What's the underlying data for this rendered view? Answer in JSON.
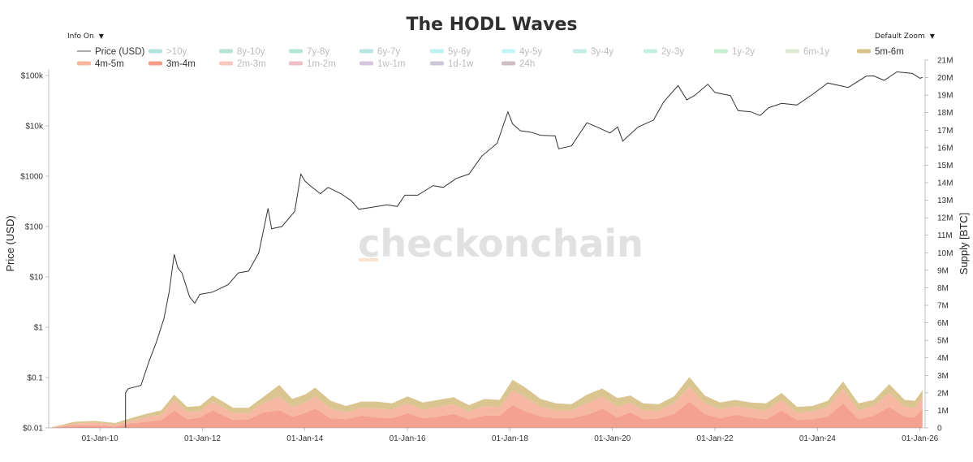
{
  "header": {
    "title": "The HODL Waves",
    "info_toggle": "Info On",
    "zoom_select": "Default Zoom",
    "watermark": "checkonchain"
  },
  "chart_data": {
    "type": "area",
    "title": "The HODL Waves",
    "xlabel": "",
    "ylabel_left": "Price (USD)",
    "ylabel_right": "Supply [BTC]",
    "x_range": [
      2009.0,
      2026.1
    ],
    "y_left_scale": "log",
    "y_left_range": [
      0.01,
      100000
    ],
    "y_right_range": [
      0,
      21000000
    ],
    "x_ticks": [
      {
        "year": 2010,
        "label": "01-Jan-10"
      },
      {
        "year": 2012,
        "label": "01-Jan-12"
      },
      {
        "year": 2014,
        "label": "01-Jan-14"
      },
      {
        "year": 2016,
        "label": "01-Jan-16"
      },
      {
        "year": 2018,
        "label": "01-Jan-18"
      },
      {
        "year": 2020,
        "label": "01-Jan-20"
      },
      {
        "year": 2022,
        "label": "01-Jan-22"
      },
      {
        "year": 2024,
        "label": "01-Jan-24"
      },
      {
        "year": 2026,
        "label": "01-Jan-26"
      }
    ],
    "y_left_ticks": [
      {
        "value": 0.01,
        "label": "$0.01"
      },
      {
        "value": 0.1,
        "label": "$0.1"
      },
      {
        "value": 1,
        "label": "$1"
      },
      {
        "value": 10,
        "label": "$10"
      },
      {
        "value": 100,
        "label": "$100"
      },
      {
        "value": 1000,
        "label": "$1000"
      },
      {
        "value": 10000,
        "label": "$10k"
      },
      {
        "value": 100000,
        "label": "$100k"
      }
    ],
    "y_right_ticks": [
      {
        "value": 0,
        "label": "0"
      },
      {
        "value": 1000000,
        "label": "1M"
      },
      {
        "value": 2000000,
        "label": "2M"
      },
      {
        "value": 3000000,
        "label": "3M"
      },
      {
        "value": 4000000,
        "label": "4M"
      },
      {
        "value": 5000000,
        "label": "5M"
      },
      {
        "value": 6000000,
        "label": "6M"
      },
      {
        "value": 7000000,
        "label": "7M"
      },
      {
        "value": 8000000,
        "label": "8M"
      },
      {
        "value": 9000000,
        "label": "9M"
      },
      {
        "value": 10000000,
        "label": "10M"
      },
      {
        "value": 11000000,
        "label": "11M"
      },
      {
        "value": 12000000,
        "label": "12M"
      },
      {
        "value": 13000000,
        "label": "13M"
      },
      {
        "value": 14000000,
        "label": "14M"
      },
      {
        "value": 15000000,
        "label": "15M"
      },
      {
        "value": 16000000,
        "label": "16M"
      },
      {
        "value": 17000000,
        "label": "17M"
      },
      {
        "value": 18000000,
        "label": "18M"
      },
      {
        "value": 19000000,
        "label": "19M"
      },
      {
        "value": 20000000,
        "label": "20M"
      },
      {
        "value": 21000000,
        "label": "21M"
      }
    ],
    "legend": [
      {
        "name": "Price (USD)",
        "color": "#555555",
        "type": "line",
        "visible": true
      },
      {
        "name": ">10y",
        "color": "#b2e3de",
        "type": "area",
        "visible": false
      },
      {
        "name": "8y-10y",
        "color": "#b5e2d2",
        "type": "area",
        "visible": false
      },
      {
        "name": "7y-8y",
        "color": "#b3e6d6",
        "type": "area",
        "visible": false
      },
      {
        "name": "6y-7y",
        "color": "#b6e4e1",
        "type": "area",
        "visible": false
      },
      {
        "name": "5y-6y",
        "color": "#bdf2ef",
        "type": "area",
        "visible": false
      },
      {
        "name": "4y-5y",
        "color": "#c4f5f6",
        "type": "area",
        "visible": false
      },
      {
        "name": "3y-4y",
        "color": "#c3ede6",
        "type": "area",
        "visible": false
      },
      {
        "name": "2y-3y",
        "color": "#c4f0dd",
        "type": "area",
        "visible": false
      },
      {
        "name": "1y-2y",
        "color": "#c8efcf",
        "type": "area",
        "visible": false
      },
      {
        "name": "6m-1y",
        "color": "#dcead0",
        "type": "area",
        "visible": false
      },
      {
        "name": "5m-6m",
        "color": "#d8c28a",
        "type": "area",
        "visible": true
      },
      {
        "name": "4m-5m",
        "color": "#f6b49e",
        "type": "area",
        "visible": true
      },
      {
        "name": "3m-4m",
        "color": "#f49c89",
        "type": "area",
        "visible": true
      },
      {
        "name": "2m-3m",
        "color": "#f8c7bd",
        "type": "area",
        "visible": false
      },
      {
        "name": "1m-2m",
        "color": "#eebfc6",
        "type": "area",
        "visible": false
      },
      {
        "name": "1w-1m",
        "color": "#d4c6dc",
        "type": "area",
        "visible": false
      },
      {
        "name": "1d-1w",
        "color": "#cdc6d6",
        "type": "area",
        "visible": false
      },
      {
        "name": "24h",
        "color": "#cdbdc5",
        "type": "area",
        "visible": false
      }
    ],
    "price_series": [
      {
        "x": 2010.5,
        "y": 0.05
      },
      {
        "x": 2010.55,
        "y": 0.06
      },
      {
        "x": 2010.8,
        "y": 0.07
      },
      {
        "x": 2010.95,
        "y": 0.2
      },
      {
        "x": 2011.1,
        "y": 0.5
      },
      {
        "x": 2011.25,
        "y": 1.5
      },
      {
        "x": 2011.35,
        "y": 5
      },
      {
        "x": 2011.45,
        "y": 28
      },
      {
        "x": 2011.52,
        "y": 15
      },
      {
        "x": 2011.6,
        "y": 12
      },
      {
        "x": 2011.75,
        "y": 4
      },
      {
        "x": 2011.85,
        "y": 3
      },
      {
        "x": 2011.95,
        "y": 4.5
      },
      {
        "x": 2012.2,
        "y": 5
      },
      {
        "x": 2012.5,
        "y": 7
      },
      {
        "x": 2012.7,
        "y": 12
      },
      {
        "x": 2012.9,
        "y": 13
      },
      {
        "x": 2013.1,
        "y": 30
      },
      {
        "x": 2013.28,
        "y": 230
      },
      {
        "x": 2013.35,
        "y": 90
      },
      {
        "x": 2013.55,
        "y": 100
      },
      {
        "x": 2013.8,
        "y": 200
      },
      {
        "x": 2013.92,
        "y": 1100
      },
      {
        "x": 2014.0,
        "y": 800
      },
      {
        "x": 2014.1,
        "y": 650
      },
      {
        "x": 2014.3,
        "y": 450
      },
      {
        "x": 2014.45,
        "y": 600
      },
      {
        "x": 2014.7,
        "y": 450
      },
      {
        "x": 2014.9,
        "y": 330
      },
      {
        "x": 2015.05,
        "y": 220
      },
      {
        "x": 2015.3,
        "y": 240
      },
      {
        "x": 2015.6,
        "y": 270
      },
      {
        "x": 2015.8,
        "y": 250
      },
      {
        "x": 2015.95,
        "y": 420
      },
      {
        "x": 2016.2,
        "y": 420
      },
      {
        "x": 2016.5,
        "y": 650
      },
      {
        "x": 2016.7,
        "y": 600
      },
      {
        "x": 2016.95,
        "y": 900
      },
      {
        "x": 2017.2,
        "y": 1100
      },
      {
        "x": 2017.45,
        "y": 2500
      },
      {
        "x": 2017.75,
        "y": 4500
      },
      {
        "x": 2017.96,
        "y": 19000
      },
      {
        "x": 2018.05,
        "y": 11000
      },
      {
        "x": 2018.2,
        "y": 8000
      },
      {
        "x": 2018.4,
        "y": 7500
      },
      {
        "x": 2018.6,
        "y": 6500
      },
      {
        "x": 2018.88,
        "y": 6300
      },
      {
        "x": 2018.95,
        "y": 3500
      },
      {
        "x": 2019.2,
        "y": 4000
      },
      {
        "x": 2019.5,
        "y": 11500
      },
      {
        "x": 2019.7,
        "y": 9500
      },
      {
        "x": 2019.95,
        "y": 7200
      },
      {
        "x": 2020.1,
        "y": 9500
      },
      {
        "x": 2020.2,
        "y": 5000
      },
      {
        "x": 2020.5,
        "y": 9500
      },
      {
        "x": 2020.8,
        "y": 13000
      },
      {
        "x": 2021.0,
        "y": 30000
      },
      {
        "x": 2021.28,
        "y": 63000
      },
      {
        "x": 2021.45,
        "y": 33000
      },
      {
        "x": 2021.6,
        "y": 40000
      },
      {
        "x": 2021.86,
        "y": 67000
      },
      {
        "x": 2022.0,
        "y": 46000
      },
      {
        "x": 2022.3,
        "y": 40000
      },
      {
        "x": 2022.45,
        "y": 20000
      },
      {
        "x": 2022.7,
        "y": 19000
      },
      {
        "x": 2022.88,
        "y": 16000
      },
      {
        "x": 2023.05,
        "y": 23000
      },
      {
        "x": 2023.3,
        "y": 28000
      },
      {
        "x": 2023.6,
        "y": 26000
      },
      {
        "x": 2023.9,
        "y": 42000
      },
      {
        "x": 2024.2,
        "y": 71000
      },
      {
        "x": 2024.6,
        "y": 58000
      },
      {
        "x": 2024.95,
        "y": 97000
      },
      {
        "x": 2025.1,
        "y": 98000
      },
      {
        "x": 2025.3,
        "y": 80000
      },
      {
        "x": 2025.55,
        "y": 118000
      },
      {
        "x": 2025.85,
        "y": 110000
      },
      {
        "x": 2026.0,
        "y": 88000
      },
      {
        "x": 2026.05,
        "y": 92000
      }
    ],
    "supply_bands": {
      "x": [
        2009.0,
        2009.5,
        2009.9,
        2010.3,
        2010.6,
        2010.9,
        2011.2,
        2011.45,
        2011.7,
        2011.95,
        2012.2,
        2012.6,
        2012.9,
        2013.2,
        2013.5,
        2013.75,
        2014.0,
        2014.2,
        2014.5,
        2014.8,
        2015.1,
        2015.4,
        2015.7,
        2016.0,
        2016.3,
        2016.6,
        2016.9,
        2017.2,
        2017.5,
        2017.8,
        2018.05,
        2018.3,
        2018.6,
        2018.9,
        2019.2,
        2019.5,
        2019.8,
        2020.1,
        2020.35,
        2020.6,
        2020.9,
        2021.2,
        2021.5,
        2021.8,
        2022.1,
        2022.4,
        2022.7,
        2023.0,
        2023.3,
        2023.6,
        2023.9,
        2024.2,
        2024.5,
        2024.8,
        2025.1,
        2025.4,
        2025.7,
        2025.9,
        2026.05
      ],
      "3m-4m": [
        0,
        150000,
        150000,
        80000,
        250000,
        350000,
        450000,
        1000000,
        500000,
        600000,
        1000000,
        450000,
        500000,
        900000,
        1000000,
        650000,
        850000,
        1100000,
        550000,
        500000,
        700000,
        600000,
        550000,
        850000,
        550000,
        650000,
        800000,
        500000,
        700000,
        700000,
        1300000,
        950000,
        650000,
        550000,
        550000,
        750000,
        1100000,
        600000,
        900000,
        500000,
        550000,
        800000,
        1500000,
        800000,
        550000,
        750000,
        600000,
        500000,
        1000000,
        450000,
        500000,
        650000,
        1400000,
        500000,
        700000,
        1200000,
        650000,
        600000,
        1100000
      ],
      "4m-5m": [
        0,
        100000,
        150000,
        120000,
        150000,
        250000,
        300000,
        600000,
        400000,
        350000,
        500000,
        400000,
        350000,
        550000,
        800000,
        550000,
        600000,
        700000,
        550000,
        400000,
        450000,
        500000,
        500000,
        550000,
        500000,
        550000,
        550000,
        450000,
        550000,
        500000,
        850000,
        800000,
        550000,
        450000,
        450000,
        650000,
        700000,
        600000,
        550000,
        500000,
        450000,
        600000,
        850000,
        600000,
        500000,
        500000,
        500000,
        500000,
        600000,
        400000,
        450000,
        550000,
        800000,
        500000,
        550000,
        800000,
        550000,
        550000,
        650000
      ],
      "5m-6m": [
        0,
        100000,
        100000,
        80000,
        150000,
        200000,
        250000,
        300000,
        300000,
        300000,
        350000,
        300000,
        300000,
        350000,
        650000,
        450000,
        450000,
        500000,
        450000,
        350000,
        350000,
        400000,
        350000,
        400000,
        400000,
        400000,
        400000,
        350000,
        400000,
        400000,
        600000,
        550000,
        450000,
        400000,
        350000,
        500000,
        450000,
        500000,
        400000,
        400000,
        350000,
        400000,
        550000,
        450000,
        400000,
        350000,
        350000,
        400000,
        400000,
        350000,
        300000,
        350000,
        450000,
        400000,
        350000,
        500000,
        400000,
        400000,
        400000
      ]
    }
  }
}
